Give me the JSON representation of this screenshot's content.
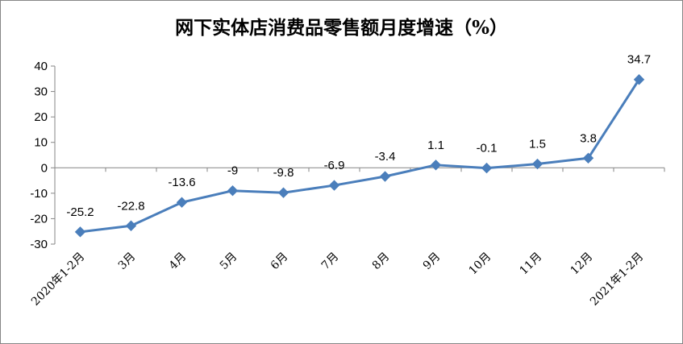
{
  "chart_data": {
    "type": "line",
    "title": "网下实体店消费品零售额月度增速（%）",
    "categories": [
      "2020年1-2月",
      "3月",
      "4月",
      "5月",
      "6月",
      "7月",
      "8月",
      "9月",
      "10月",
      "11月",
      "12月",
      "2021年1-2月"
    ],
    "series": [
      {
        "values": [
          -25.2,
          -22.8,
          -13.6,
          -9,
          -9.8,
          -6.9,
          -3.4,
          1.1,
          -0.1,
          1.5,
          3.8,
          34.7
        ],
        "labels": [
          "-25.2",
          "-22.8",
          "-13.6",
          "-9",
          "-9.8",
          "-6.9",
          "-3.4",
          "1.1",
          "-0.1",
          "1.5",
          "3.8",
          "34.7"
        ],
        "color": "#4a7ebb"
      }
    ],
    "yticks": [
      40,
      30,
      20,
      10,
      0,
      -10,
      -20,
      -30
    ],
    "ylim": [
      -30,
      40
    ],
    "xlabel": "",
    "ylabel": "",
    "grid": false,
    "legend": "none",
    "marker": "diamond"
  }
}
